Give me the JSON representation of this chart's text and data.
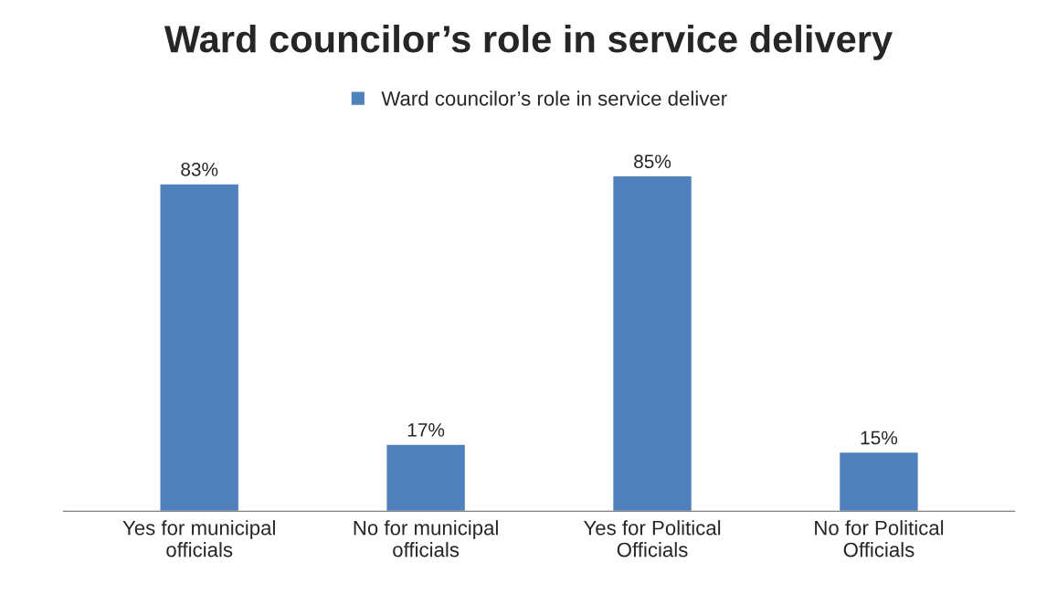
{
  "chart_data": {
    "type": "bar",
    "title": "Ward councilor’s role in service delivery",
    "categories": [
      "Yes for municipal\nofficials",
      "No for municipal\nofficials",
      "Yes for Political\nOfficials",
      "No for Political\nOfficials"
    ],
    "series": [
      {
        "name": "Ward councilor’s role in service deliver",
        "color": "#4f81bd",
        "values": [
          83,
          17,
          85,
          15
        ],
        "value_labels": [
          "83%",
          "17%",
          "85%",
          "15%"
        ]
      }
    ],
    "legend": "top",
    "grid": false
  }
}
